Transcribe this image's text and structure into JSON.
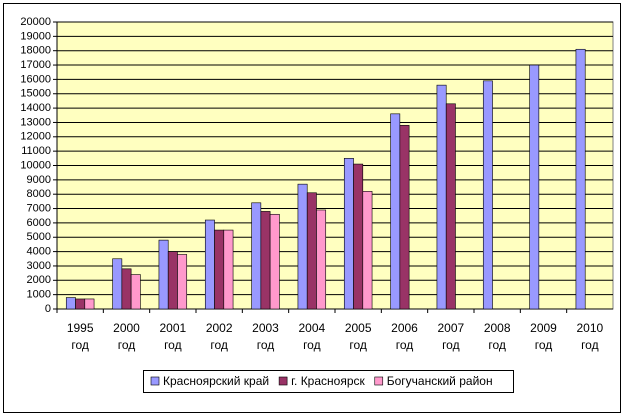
{
  "chart_data": {
    "type": "bar",
    "categories": [
      "1995 год",
      "2000 год",
      "2001 год",
      "2002 год",
      "2003 год",
      "2004 год",
      "2005 год",
      "2006 год",
      "2007 год",
      "2008 год",
      "2009 год",
      "2010 год"
    ],
    "series": [
      {
        "name": "Красноярский край",
        "color": "#9999ff",
        "values": [
          800,
          3500,
          4800,
          6200,
          7400,
          8700,
          10500,
          13600,
          15600,
          15900,
          17000,
          18100
        ]
      },
      {
        "name": "г. Красноярск",
        "color": "#993366",
        "values": [
          700,
          2800,
          4000,
          5500,
          6800,
          8100,
          10100,
          12800,
          14300,
          null,
          null,
          null
        ]
      },
      {
        "name": "Богучанский район",
        "color": "#ff99cc",
        "values": [
          700,
          2400,
          3800,
          5500,
          6600,
          6900,
          8200,
          null,
          null,
          null,
          null,
          null
        ]
      }
    ],
    "ylim": [
      0,
      20000
    ],
    "yticks": [
      0,
      1000,
      2000,
      3000,
      4000,
      5000,
      6000,
      7000,
      8000,
      9000,
      10000,
      11000,
      12000,
      13000,
      14000,
      15000,
      16000,
      17000,
      18000,
      19000,
      20000
    ],
    "grid": true,
    "plot_background": "#ffffc0",
    "legend": "bottom"
  }
}
